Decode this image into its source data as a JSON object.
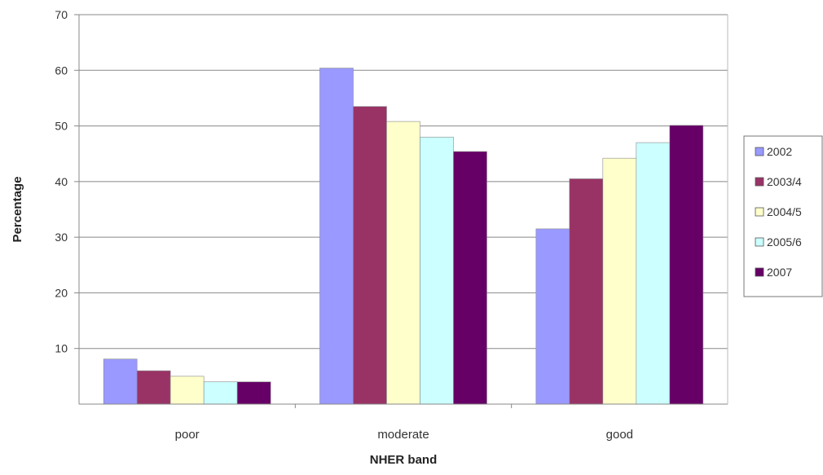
{
  "chart_data": {
    "type": "bar",
    "title": "",
    "xlabel": "NHER band",
    "ylabel": "Percentage",
    "ylim": [
      0,
      70
    ],
    "yticks": [
      10,
      20,
      30,
      40,
      50,
      60,
      70
    ],
    "grid": true,
    "legend_position": "right",
    "categories": [
      "poor",
      "moderate",
      "good"
    ],
    "series": [
      {
        "name": "2002",
        "color": "#9999ff",
        "values": [
          8.1,
          60.4,
          31.5
        ]
      },
      {
        "name": "2003/4",
        "color": "#993366",
        "values": [
          6.0,
          53.5,
          40.5
        ]
      },
      {
        "name": "2004/5",
        "color": "#ffffcc",
        "values": [
          5.0,
          50.8,
          44.2
        ]
      },
      {
        "name": "2005/6",
        "color": "#ccffff",
        "values": [
          4.0,
          48.0,
          47.0
        ]
      },
      {
        "name": "2007",
        "color": "#660066",
        "values": [
          4.0,
          45.4,
          50.1
        ]
      }
    ]
  }
}
